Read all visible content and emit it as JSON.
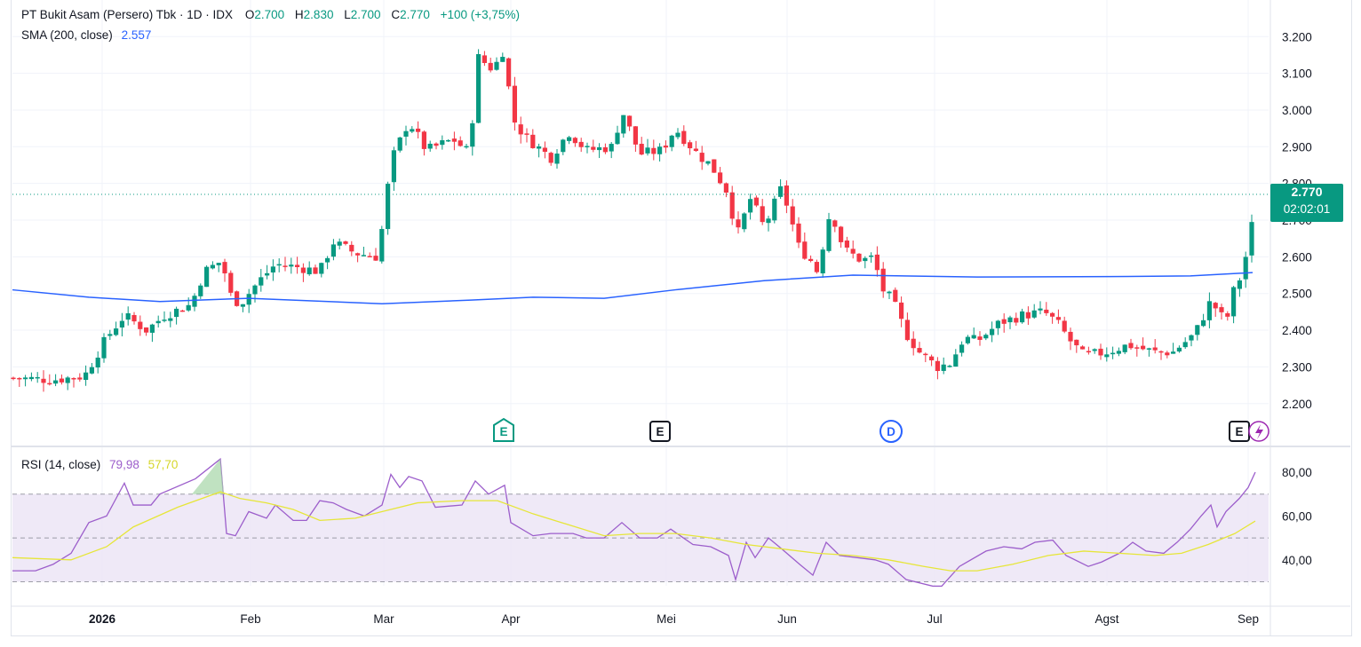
{
  "header": {
    "symbol_title": "PT Bukit Asam (Persero) Tbk · 1D · IDX",
    "open_label": "O",
    "open_value": "2.700",
    "high_label": "H",
    "high_value": "2.830",
    "low_label": "L",
    "low_value": "2.700",
    "close_label": "C",
    "close_value": "2.770",
    "change": "+100 (+3,75%)"
  },
  "sma_legend": {
    "label": "SMA (200, close)",
    "value": "2.557"
  },
  "rsi_legend": {
    "label": "RSI (14, close)",
    "value": "79,98",
    "ma_value": "57,70"
  },
  "price_badge": {
    "price": "2.770",
    "countdown": "02:02:01"
  },
  "colors": {
    "up": "#089981",
    "down": "#f23645",
    "sma": "#2962ff",
    "rsi": "#9c5ecb",
    "rsi_ma": "#e6e639",
    "band": "#ede7f6"
  },
  "events": [
    {
      "label": "E",
      "month": "Mar",
      "style": "teal"
    },
    {
      "label": "E",
      "month": "Mei",
      "style": "dark"
    },
    {
      "label": "D",
      "month": "Jun",
      "style": "blue"
    },
    {
      "label": "E",
      "month": "Sep",
      "style": "dark"
    }
  ],
  "chart_data": [
    {
      "type": "candlestick",
      "title": "PT Bukit Asam (Persero) Tbk · 1D · IDX",
      "y_axis": {
        "ticks": [
          "3.200",
          "3.100",
          "3.000",
          "2.900",
          "2.800",
          "2.700",
          "2.600",
          "2.500",
          "2.400",
          "2.300",
          "2.200"
        ],
        "range": [
          2120,
          3240
        ],
        "side": "right"
      },
      "x_axis": {
        "ticks": [
          "2026",
          "Feb",
          "Mar",
          "Apr",
          "Mei",
          "Jun",
          "Jul",
          "Agst",
          "Sep"
        ]
      },
      "last_close": 2770,
      "ohlc_summary": [
        {
          "period": "Jan early",
          "close": 2270
        },
        {
          "period": "Jan mid",
          "close": 2440
        },
        {
          "period": "Jan late",
          "close": 2590
        },
        {
          "period": "Feb early",
          "close": 2540
        },
        {
          "period": "Feb late",
          "close": 2620
        },
        {
          "period": "Mar early",
          "close": 2970
        },
        {
          "period": "Mar late",
          "close": 3140
        },
        {
          "period": "Apr early",
          "close": 2960
        },
        {
          "period": "Apr late",
          "close": 2880
        },
        {
          "period": "May early",
          "close": 2890
        },
        {
          "period": "May late",
          "close": 2650
        },
        {
          "period": "Jun early",
          "close": 2750
        },
        {
          "period": "Jun late",
          "close": 2560
        },
        {
          "period": "Jul early",
          "close": 2290
        },
        {
          "period": "Jul late",
          "close": 2420
        },
        {
          "period": "Aug early",
          "close": 2330
        },
        {
          "period": "Aug late",
          "close": 2360
        },
        {
          "period": "Sep",
          "close": 2770
        }
      ],
      "series": [
        {
          "name": "SMA (200, close)",
          "values_summary": [
            2510,
            2475,
            2485,
            2470,
            2490,
            2485,
            2520,
            2545,
            2545,
            2545,
            2557
          ]
        }
      ]
    },
    {
      "type": "line",
      "title": "RSI (14, close)",
      "y_axis": {
        "ticks": [
          "80,00",
          "60,00",
          "40,00"
        ],
        "range": [
          22,
          88
        ],
        "bands": [
          30,
          70
        ]
      },
      "series": [
        {
          "name": "RSI (14, close)",
          "last": 79.98
        },
        {
          "name": "RSI MA",
          "last": 57.7
        }
      ]
    }
  ]
}
